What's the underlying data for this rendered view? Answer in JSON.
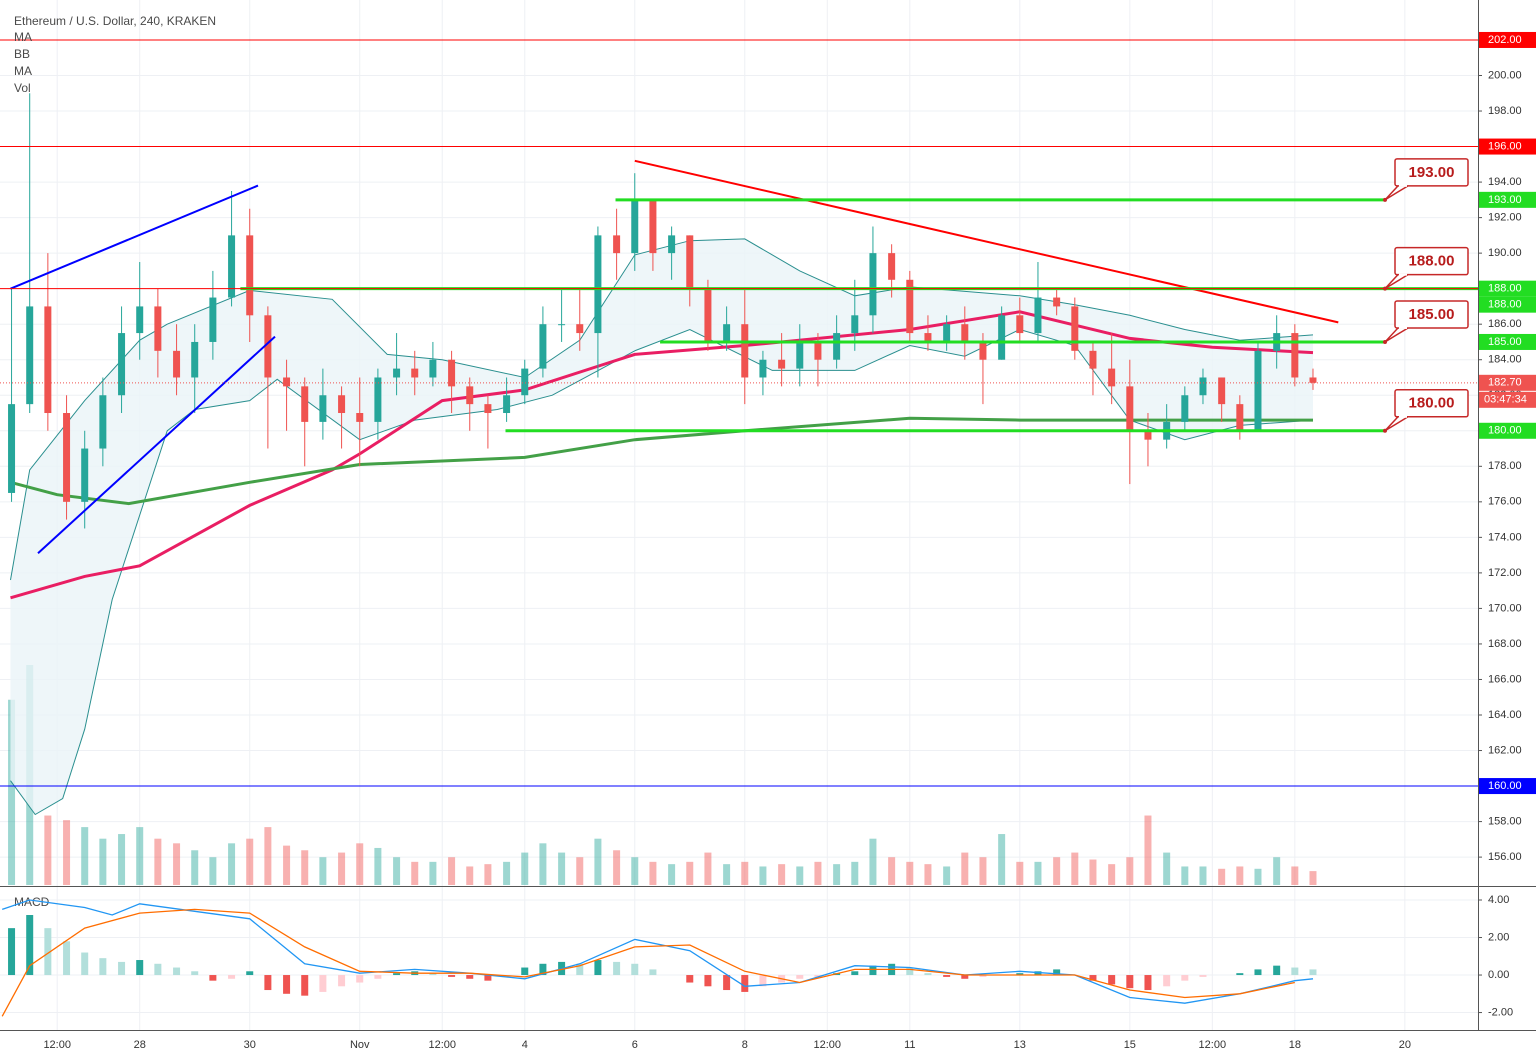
{
  "chart_data": {
    "type": "candlestick",
    "title": "Ethereum / U.S. Dollar, 240, KRAKEN",
    "indicators": [
      "MA",
      "BB",
      "MA",
      "Vol"
    ],
    "up_color": "#26a69a",
    "down_color": "#ef5350",
    "x": [
      -0.33,
      0,
      0.33,
      0.67,
      1,
      1.33,
      1.67,
      2,
      2.33,
      2.67,
      3,
      3.33,
      3.67,
      4,
      4.33,
      4.67,
      5,
      5.33,
      5.67,
      6,
      6.33,
      6.67,
      7,
      7.33,
      7.67,
      8,
      8.33,
      8.67,
      9,
      9.33,
      9.67,
      10,
      10.33,
      10.67,
      11,
      11.33,
      11.67,
      12,
      12.33,
      12.67,
      13,
      13.33,
      13.67,
      14,
      14.33,
      14.67,
      15,
      15.33,
      15.67,
      16,
      16.33,
      16.67,
      17,
      17.33,
      17.67,
      18,
      18.33,
      18.67,
      19,
      19.33,
      19.67,
      20,
      20.33,
      20.67,
      21,
      21.33,
      21.67,
      22,
      22.33,
      22.67,
      23,
      23.33
    ],
    "open": [
      176.5,
      181.5,
      187,
      181,
      176,
      179,
      182,
      185.5,
      187,
      184.5,
      183,
      185,
      187.5,
      191,
      186.5,
      183,
      182.5,
      180.5,
      182,
      181,
      180.5,
      183,
      183.5,
      183,
      184,
      182.5,
      181.5,
      181,
      182,
      183.5,
      186,
      186,
      185.5,
      191,
      190,
      193,
      190,
      191,
      188,
      185,
      186,
      183,
      184,
      183.5,
      185,
      184,
      185.5,
      186.5,
      190,
      188.5,
      185.5,
      185,
      186,
      185,
      184,
      186.5,
      185.5,
      187.5,
      187,
      184.5,
      183.5,
      182.5,
      180,
      179.5,
      180.5,
      182,
      183,
      181.5,
      180,
      184.5,
      185.5,
      183
    ],
    "high": [
      188,
      199,
      190,
      182,
      180,
      183,
      187,
      189.5,
      188,
      186,
      186,
      189,
      193.5,
      192.5,
      187,
      184,
      183,
      183.5,
      182.5,
      183,
      183.5,
      185.5,
      184.5,
      185,
      184.5,
      183,
      182,
      183,
      184,
      187,
      188,
      188,
      191.5,
      192.5,
      194.5,
      193,
      191.5,
      191,
      188.5,
      187,
      188,
      184.5,
      185.5,
      186,
      185.5,
      186.5,
      188.5,
      191.5,
      190.5,
      189,
      186.5,
      186.5,
      187,
      185.5,
      187,
      187.5,
      189.5,
      188,
      187.5,
      185,
      185.5,
      184,
      181,
      181.5,
      182.5,
      183.5,
      183,
      182,
      185,
      186.5,
      186,
      183.5
    ],
    "low": [
      176,
      181,
      180,
      175,
      174.5,
      178,
      181,
      184,
      183,
      182,
      181,
      184,
      187,
      185,
      179,
      180,
      178,
      179.5,
      179,
      178,
      179.5,
      182,
      182,
      182.5,
      181,
      180,
      179,
      180.5,
      181.5,
      183,
      185,
      184.5,
      183,
      188.5,
      189,
      189,
      188.5,
      187,
      184.5,
      184.5,
      181.5,
      182,
      182.5,
      182.5,
      182.5,
      183.5,
      184.5,
      185.5,
      187.5,
      185,
      184.5,
      184.5,
      184,
      181.5,
      184,
      185,
      185,
      186.5,
      184,
      182,
      181.5,
      177,
      178,
      179,
      180,
      181.5,
      180.5,
      179.5,
      180,
      183.5,
      182.5,
      182.3
    ],
    "close": [
      181.5,
      187,
      181,
      176,
      179,
      182,
      185.5,
      187,
      184.5,
      183,
      185,
      187.5,
      191,
      186.5,
      183,
      182.5,
      180.5,
      182,
      181,
      180.5,
      183,
      183.5,
      183,
      184,
      182.5,
      181.5,
      181,
      182,
      183.5,
      186,
      186,
      185.5,
      191,
      190,
      193,
      190,
      191,
      188,
      185,
      186,
      183,
      184,
      183.5,
      185,
      184,
      185.5,
      186.5,
      190,
      188.5,
      185.5,
      185,
      186,
      185,
      184,
      186.5,
      185.5,
      187.5,
      187,
      184.5,
      183.5,
      182.5,
      180,
      179.5,
      180.5,
      182,
      183,
      181.5,
      180,
      184.5,
      185.5,
      183,
      182.7
    ],
    "volume": [
      80,
      95,
      30,
      28,
      25,
      20,
      22,
      25,
      20,
      18,
      15,
      12,
      18,
      20,
      25,
      17,
      15,
      12,
      14,
      18,
      16,
      12,
      10,
      10,
      12,
      8,
      9,
      10,
      14,
      18,
      14,
      12,
      20,
      15,
      12,
      10,
      9,
      10,
      14,
      9,
      10,
      8,
      9,
      8,
      10,
      9,
      10,
      20,
      12,
      10,
      9,
      8,
      14,
      12,
      22,
      10,
      10,
      12,
      14,
      11,
      9,
      12,
      30,
      14,
      8,
      8,
      7,
      8,
      7,
      12,
      8,
      6
    ],
    "xlim": [
      -0.54,
      26.33
    ],
    "xticks": [
      {
        "value": 0.5,
        "label": "12:00"
      },
      {
        "value": 2,
        "label": "28"
      },
      {
        "value": 4,
        "label": "30"
      },
      {
        "value": 6,
        "label": "Nov"
      },
      {
        "value": 7.5,
        "label": "12:00"
      },
      {
        "value": 9,
        "label": "4"
      },
      {
        "value": 11,
        "label": "6"
      },
      {
        "value": 13,
        "label": "8"
      },
      {
        "value": 14.5,
        "label": "12:00"
      },
      {
        "value": 16,
        "label": "11"
      },
      {
        "value": 18,
        "label": "13"
      },
      {
        "value": 20,
        "label": "15"
      },
      {
        "value": 21.5,
        "label": "12:00"
      },
      {
        "value": 23,
        "label": "18"
      },
      {
        "value": 25,
        "label": "20"
      }
    ],
    "ylim": [
      154.43,
      204.25
    ],
    "yticks": [
      {
        "value": 156,
        "label": "156.00"
      },
      {
        "value": 158,
        "label": "158.00"
      },
      {
        "value": 160,
        "label": "160.00"
      },
      {
        "value": 162,
        "label": "162.00"
      },
      {
        "value": 164,
        "label": "164.00"
      },
      {
        "value": 166,
        "label": "166.00"
      },
      {
        "value": 168,
        "label": "168.00"
      },
      {
        "value": 170,
        "label": "170.00"
      },
      {
        "value": 172,
        "label": "172.00"
      },
      {
        "value": 174,
        "label": "174.00"
      },
      {
        "value": 176,
        "label": "176.00"
      },
      {
        "value": 178,
        "label": "178.00"
      },
      {
        "value": 180,
        "label": "180.00"
      },
      {
        "value": 182,
        "label": "182.00"
      },
      {
        "value": 184,
        "label": "184.00"
      },
      {
        "value": 186,
        "label": "186.00"
      },
      {
        "value": 188,
        "label": "188.00"
      },
      {
        "value": 190,
        "label": "190.00"
      },
      {
        "value": 192,
        "label": "192.00"
      },
      {
        "value": 194,
        "label": "194.00"
      },
      {
        "value": 196,
        "label": "196.00"
      },
      {
        "value": 198,
        "label": "198.00"
      },
      {
        "value": 200,
        "label": "200.00"
      }
    ],
    "grid": true,
    "overlays": [
      {
        "kind": "band",
        "color": "#2a8f8f",
        "fill": "#eaf4f8",
        "upper": {
          "x": [
            -0.35,
            0,
            1,
            2,
            2.5,
            4,
            5.5,
            6.5,
            7.5,
            9,
            10,
            11,
            12,
            13,
            14,
            15,
            16,
            18,
            19,
            20,
            21,
            22,
            23.33
          ],
          "values": [
            171.6,
            177.8,
            181.7,
            185.1,
            186,
            187.9,
            187.4,
            184.3,
            184,
            183,
            185.1,
            189.9,
            190.7,
            190.8,
            189,
            187.6,
            188.1,
            187.6,
            187.1,
            186.5,
            185.7,
            185.1,
            185.4
          ]
        },
        "lower": {
          "x": [
            -0.35,
            0.1,
            0.6,
            1,
            1.5,
            2.5,
            3,
            4,
            4.5,
            6,
            7,
            8.5,
            9.5,
            11,
            12,
            13.5,
            15,
            16,
            17,
            18,
            19,
            20,
            21,
            22,
            23.33
          ],
          "values": [
            160.3,
            158.4,
            159.3,
            163.2,
            170.5,
            180,
            181.2,
            181.7,
            182.9,
            179.5,
            180.6,
            181.2,
            182,
            184.5,
            185.7,
            183.4,
            183.4,
            184.8,
            184.2,
            185.7,
            184.8,
            180.6,
            179.5,
            180.3,
            180.6
          ]
        }
      },
      {
        "kind": "line",
        "color": "#e91e63",
        "width": 3,
        "x": [
          -0.35,
          1,
          2,
          4,
          5.5,
          6,
          7.5,
          9,
          10.4,
          11,
          13,
          16,
          18,
          20,
          21.5,
          23.33
        ],
        "values": [
          170.6,
          171.8,
          172.4,
          175.8,
          177.8,
          178.7,
          181.7,
          182.3,
          183.7,
          184.3,
          184.8,
          185.7,
          186.7,
          185.2,
          184.7,
          184.4
        ]
      },
      {
        "kind": "line",
        "color": "#43a047",
        "width": 3,
        "x": [
          -0.35,
          0.5,
          1.8,
          4,
          6,
          9,
          11,
          13,
          16,
          18,
          20,
          23.33
        ],
        "values": [
          177.1,
          176.4,
          175.9,
          177.1,
          178.1,
          178.5,
          179.5,
          180,
          180.7,
          180.6,
          180.6,
          180.6
        ]
      }
    ],
    "levels": [
      {
        "value": 202,
        "label": "202.00",
        "color": "#ff0000",
        "badge_color": "#ff0000",
        "width": 1
      },
      {
        "value": 196,
        "label": "196.00",
        "color": "#ff0000",
        "badge_color": "#ff0000",
        "width": 1
      },
      {
        "value": 193,
        "label": "193.00",
        "color": "#22dd22",
        "badge_color": "#22dd22",
        "width": 3,
        "from": 10.65,
        "to": 24.65,
        "callout": "193.00"
      },
      {
        "value": 188,
        "label": "188.00",
        "color": "#22dd22",
        "badge_color": "#22dd22",
        "width": 3,
        "from": 3.83,
        "to": 26.33,
        "callout": "188.00"
      },
      {
        "value": 188,
        "label": "188.00",
        "color": "#ff0000",
        "badge_color": "#22dd22",
        "width": 1
      },
      {
        "value": 185,
        "label": "185.00",
        "color": "#22dd22",
        "badge_color": "#22dd22",
        "width": 3,
        "from": 11.46,
        "to": 24.65,
        "callout": "185.00"
      },
      {
        "value": 180,
        "label": "180.00",
        "color": "#22dd22",
        "badge_color": "#22dd22",
        "width": 3,
        "from": 8.65,
        "to": 24.65,
        "callout": "180.00"
      },
      {
        "value": 160,
        "label": "160.00",
        "color": "#0000ff",
        "badge_color": "#0000ff",
        "width": 1
      }
    ],
    "current": {
      "value": 182.7,
      "label": "182.70",
      "timer": "03:47:34",
      "color": "#ef5350"
    },
    "trendlines": [
      {
        "color": "#0000ff",
        "x": [
          -0.35,
          4.15
        ],
        "y": [
          188,
          193.8
        ]
      },
      {
        "color": "#0000ff",
        "x": [
          0.15,
          4.46
        ],
        "y": [
          173.1,
          185.3
        ]
      },
      {
        "color": "#ff0000",
        "x": [
          11,
          23.79
        ],
        "y": [
          195.2,
          186.1
        ]
      }
    ],
    "macd": {
      "title": "MACD",
      "ylim": [
        -2.93,
        4.64
      ],
      "yticks": [
        {
          "value": 4,
          "label": "4.00"
        },
        {
          "value": 2,
          "label": "2.00"
        },
        {
          "value": 0,
          "label": "0.00"
        },
        {
          "value": -2,
          "label": "-2.00"
        }
      ],
      "histogram": [
        2.5,
        3.2,
        2.5,
        1.8,
        1.2,
        0.9,
        0.7,
        0.8,
        0.6,
        0.4,
        0.2,
        -0.3,
        -0.2,
        0.2,
        -0.8,
        -1.0,
        -1.1,
        -0.9,
        -0.6,
        -0.4,
        -0.2,
        0.1,
        0.2,
        0.1,
        -0.1,
        -0.2,
        -0.3,
        0,
        0.4,
        0.6,
        0.7,
        0.6,
        0.8,
        0.7,
        0.6,
        0.3,
        0,
        -0.4,
        -0.6,
        -0.8,
        -0.9,
        -0.6,
        -0.4,
        -0.2,
        -0.1,
        0.1,
        0.2,
        0.5,
        0.6,
        0.4,
        0.1,
        -0.1,
        -0.2,
        -0.1,
        0,
        0.1,
        0.2,
        0.3,
        0,
        -0.3,
        -0.5,
        -0.7,
        -0.8,
        -0.6,
        -0.3,
        -0.1,
        0,
        0.1,
        0.3,
        0.5,
        0.4,
        0.3
      ],
      "lines": [
        {
          "color": "#2196f3",
          "x": [
            -0.5,
            0,
            1,
            1.5,
            2,
            3,
            4,
            5,
            6,
            7,
            8,
            9,
            10,
            11,
            12,
            13,
            14,
            15,
            16,
            17,
            18,
            19,
            20,
            21,
            22,
            23,
            23.33
          ],
          "values": [
            3.5,
            4,
            3.6,
            3.2,
            3.8,
            3.4,
            3,
            0.6,
            0.1,
            0.3,
            0.1,
            -0.2,
            0.6,
            1.9,
            1.3,
            -0.6,
            -0.4,
            0.5,
            0.4,
            0,
            0.2,
            0,
            -1.2,
            -1.5,
            -1,
            -0.3,
            -0.2
          ]
        },
        {
          "color": "#ff6d00",
          "x": [
            -0.5,
            0,
            1,
            2,
            3,
            4,
            5,
            6,
            7,
            8,
            9,
            10,
            11,
            12,
            13,
            14,
            15,
            16,
            17,
            18,
            19,
            20,
            21,
            22,
            23
          ],
          "values": [
            -2.2,
            0.5,
            2.5,
            3.3,
            3.5,
            3.3,
            1.5,
            0.2,
            0.1,
            0.1,
            -0.1,
            0.5,
            1.5,
            1.6,
            0.2,
            -0.4,
            0.3,
            0.3,
            0,
            0,
            0,
            -0.8,
            -1.2,
            -1,
            -0.4
          ]
        }
      ]
    }
  }
}
